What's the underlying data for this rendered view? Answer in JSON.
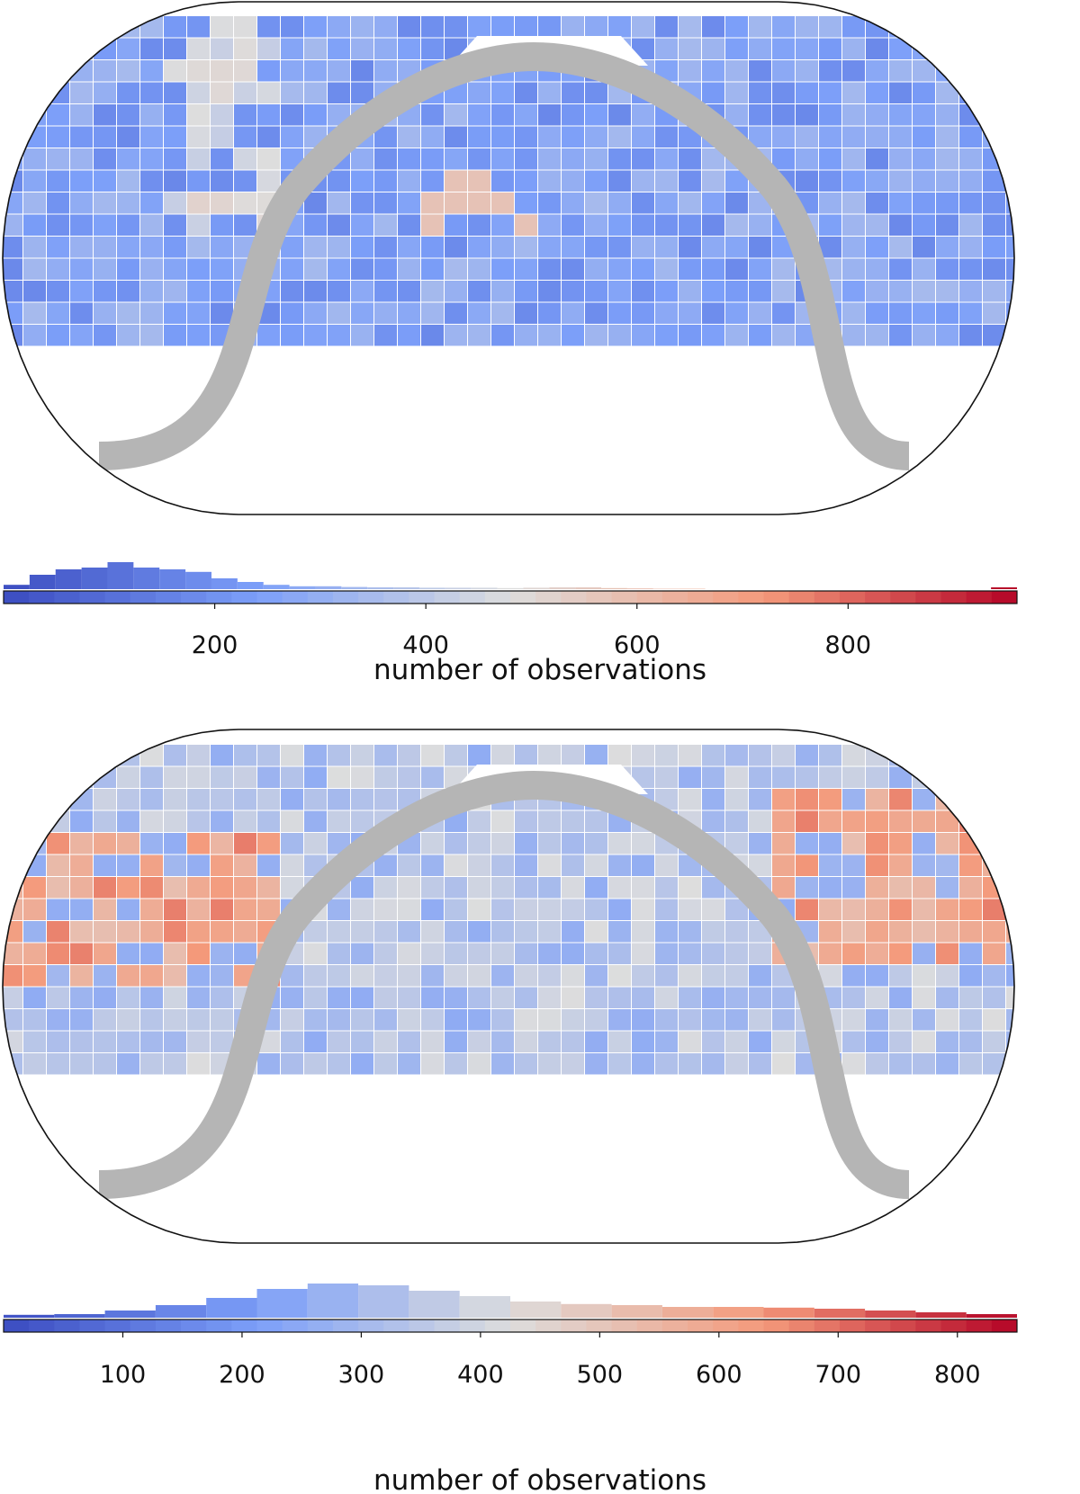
{
  "chart_data": [
    {
      "type": "heatmap",
      "projection": "Robinson-like sky map with galactic-plane band masked in gray",
      "colormap": "coolwarm",
      "colorbar": {
        "label": "number of observations",
        "range": [
          0,
          960
        ],
        "ticks": [
          200,
          400,
          600,
          800
        ],
        "histogram_counts": [
          0.12,
          0.4,
          0.55,
          0.6,
          0.75,
          0.6,
          0.55,
          0.48,
          0.3,
          0.2,
          0.12,
          0.08,
          0.08,
          0.06,
          0.05,
          0.05,
          0.04,
          0.04,
          0.04,
          0.03,
          0.04,
          0.05,
          0.05,
          0.03,
          0.02,
          0.01,
          0.01,
          0.0,
          0.0,
          0.0,
          0.0,
          0.0,
          0.0,
          0.0,
          0.0,
          0.0,
          0.0,
          0.0,
          0.05
        ]
      }
    },
    {
      "type": "heatmap",
      "projection": "Robinson-like sky map with galactic-plane band masked in gray",
      "colormap": "coolwarm",
      "colorbar": {
        "label": "number of observations",
        "range": [
          0,
          850
        ],
        "ticks": [
          100,
          200,
          300,
          400,
          500,
          600,
          700,
          800
        ],
        "histogram_counts": [
          0.08,
          0.1,
          0.2,
          0.35,
          0.55,
          0.8,
          0.95,
          0.9,
          0.75,
          0.6,
          0.45,
          0.38,
          0.35,
          0.3,
          0.3,
          0.28,
          0.25,
          0.2,
          0.15,
          0.1
        ]
      }
    }
  ]
}
